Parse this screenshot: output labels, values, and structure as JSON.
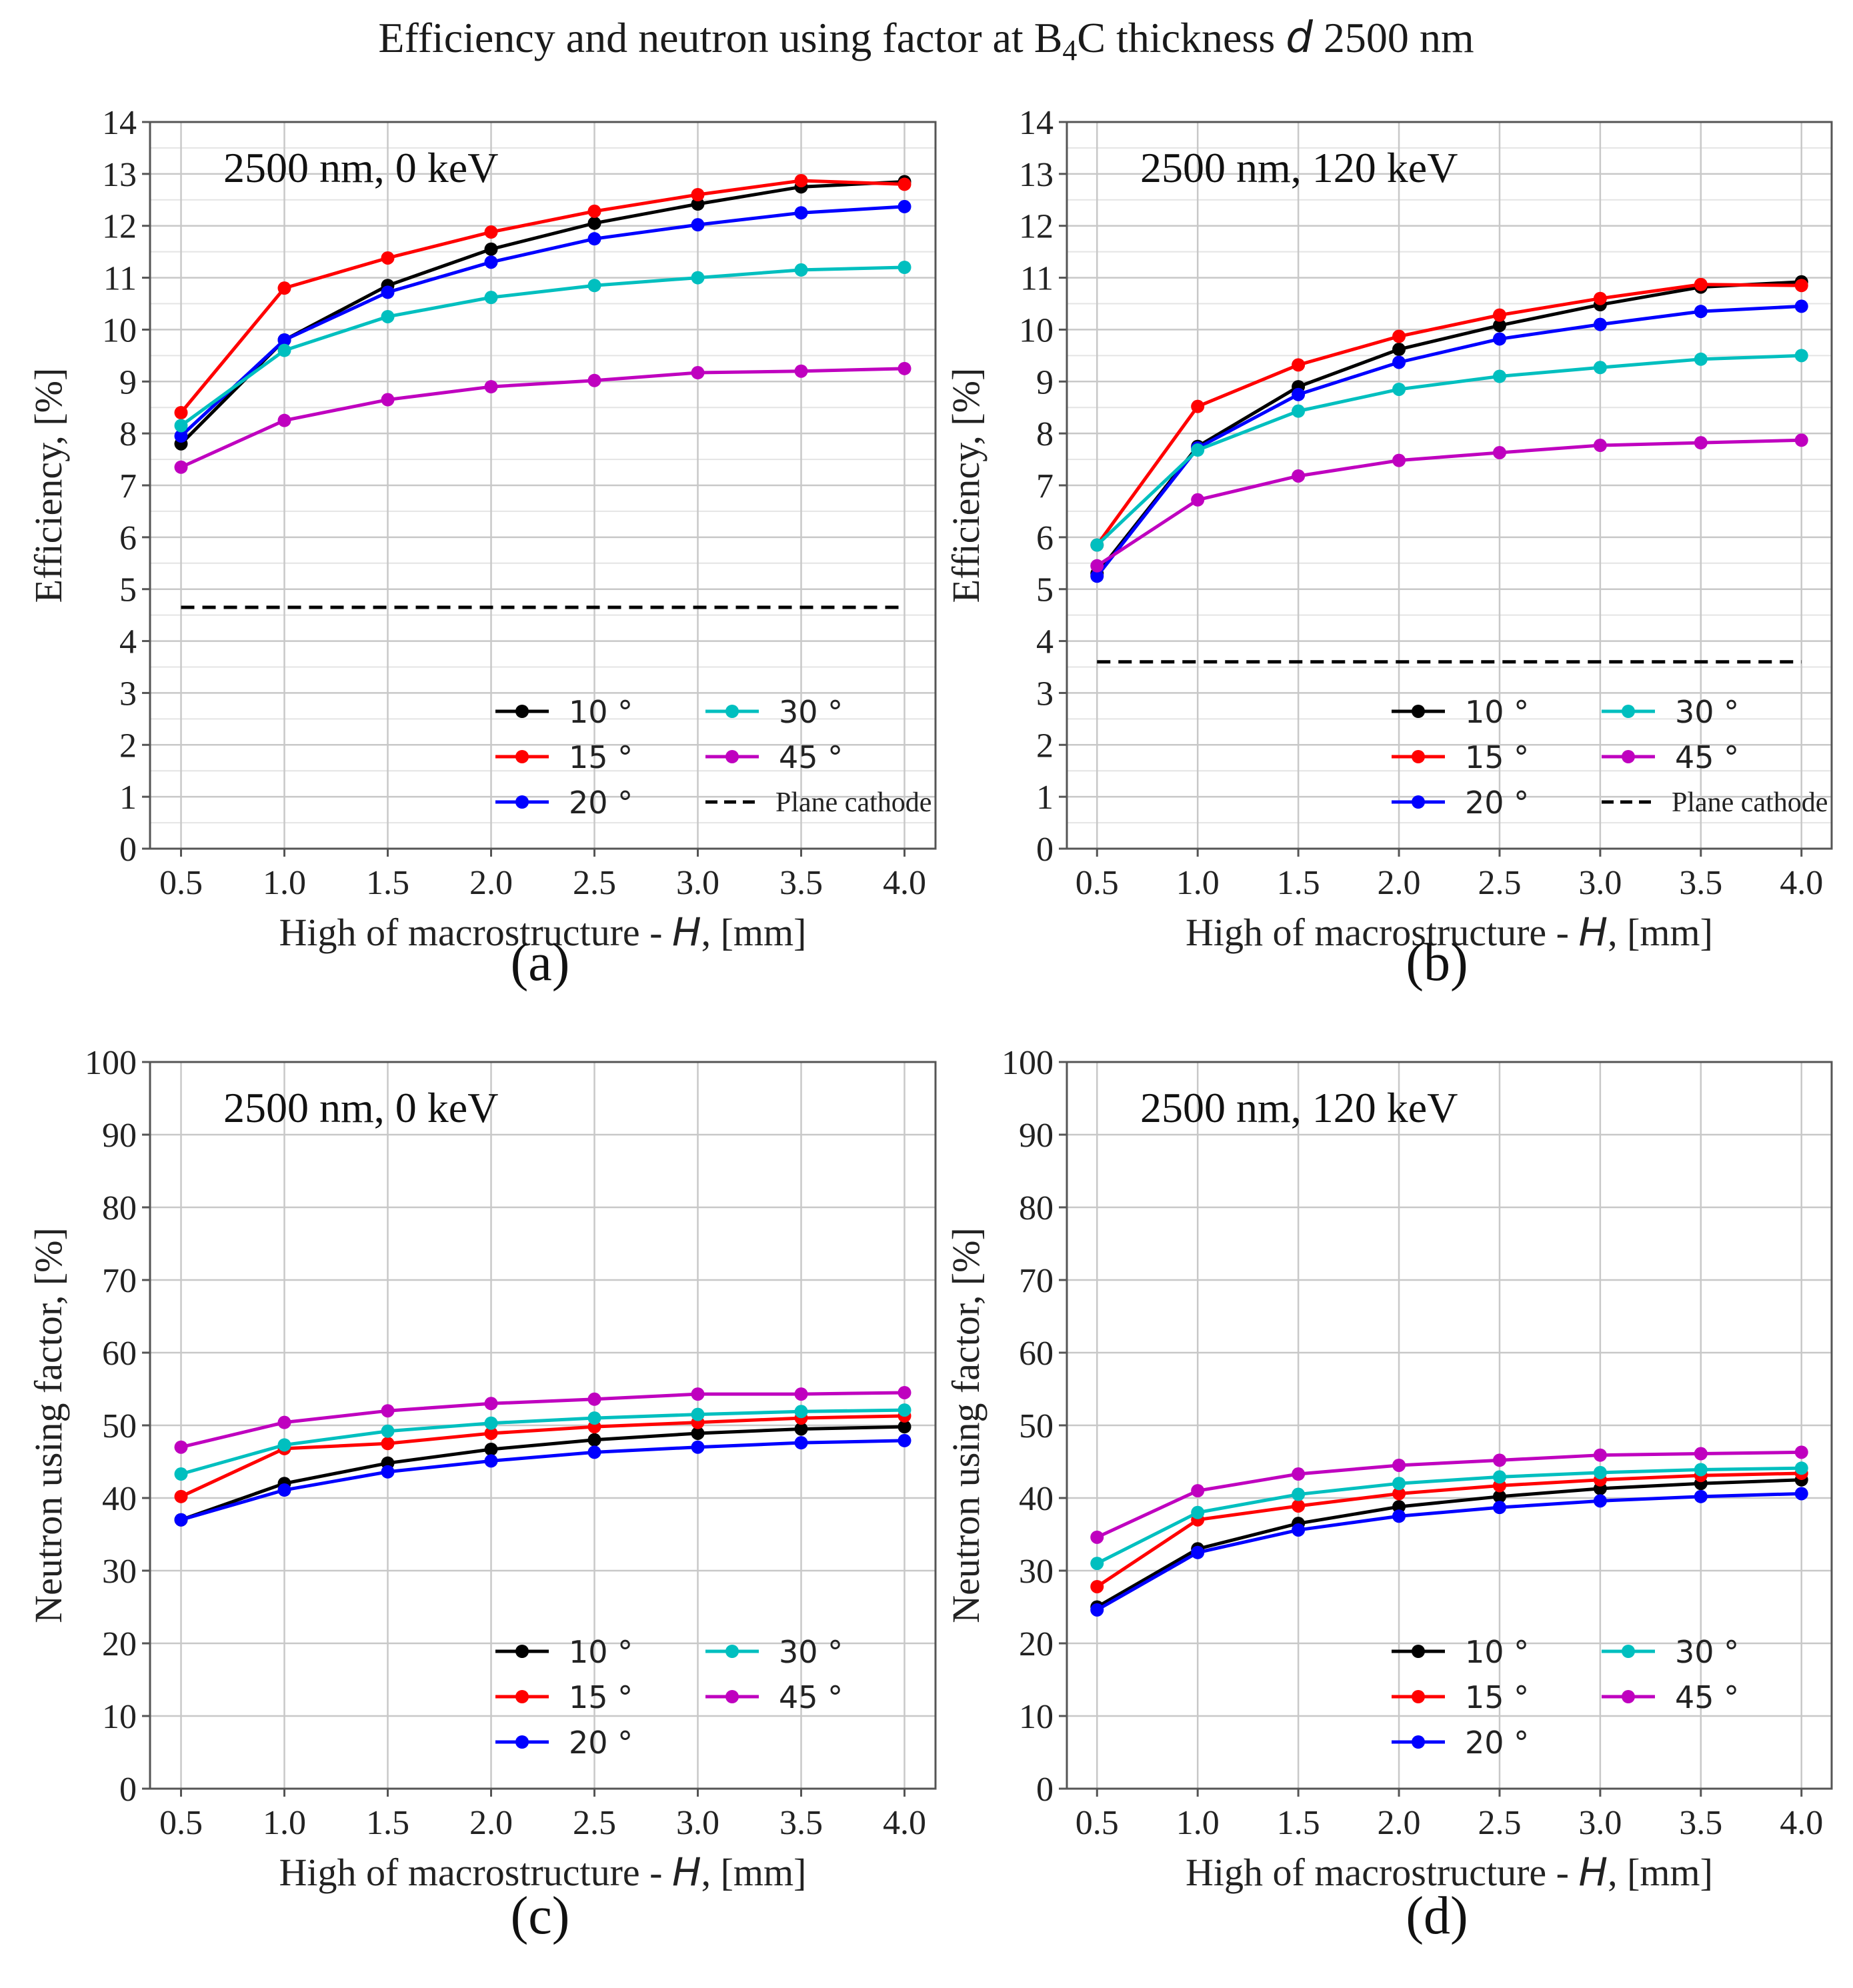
{
  "figure_title": {
    "prefix": "Efficiency and neutron using factor at B",
    "subscript": "4",
    "middle": "C thickness ",
    "var": "d",
    "suffix": " 2500 nm"
  },
  "series_colors": {
    "10°": "#000000",
    "15°": "#ff0000",
    "20°": "#0000ff",
    "30°": "#00bfbf",
    "45°": "#bf00bf",
    "Plane cathode": "#000000"
  },
  "chart_data": [
    {
      "type": "line",
      "panel_label": "(a)",
      "annotation": "2500 nm, 0 keV",
      "xlabel_prefix": "High of macrostructure - ",
      "xlabel_var": "H",
      "xlabel_suffix": ", [mm]",
      "ylabel": "Efficiency, [%]",
      "x": [
        0.5,
        1.0,
        1.5,
        2.0,
        2.5,
        3.0,
        3.5,
        4.0
      ],
      "x_ticks": [
        "0.5",
        "1.0",
        "1.5",
        "2.0",
        "2.5",
        "3.0",
        "3.5",
        "4.0"
      ],
      "xlim": [
        0.35,
        4.15
      ],
      "ylim": [
        0,
        14
      ],
      "y_ticks": [
        "0",
        "1",
        "2",
        "3",
        "4",
        "5",
        "6",
        "7",
        "8",
        "9",
        "10",
        "11",
        "12",
        "13",
        "14"
      ],
      "minor_grid": true,
      "series": [
        {
          "name": "10°",
          "values": [
            7.8,
            9.8,
            10.85,
            11.55,
            12.05,
            12.42,
            12.75,
            12.85
          ]
        },
        {
          "name": "15°",
          "values": [
            8.4,
            10.8,
            11.38,
            11.88,
            12.28,
            12.6,
            12.87,
            12.8
          ]
        },
        {
          "name": "20°",
          "values": [
            7.95,
            9.8,
            10.72,
            11.3,
            11.75,
            12.02,
            12.25,
            12.37
          ]
        },
        {
          "name": "30°",
          "values": [
            8.15,
            9.6,
            10.25,
            10.62,
            10.85,
            11.0,
            11.15,
            11.2
          ]
        },
        {
          "name": "45°",
          "values": [
            7.35,
            8.25,
            8.65,
            8.9,
            9.02,
            9.17,
            9.2,
            9.25
          ]
        }
      ],
      "reference_line": {
        "name": "Plane cathode",
        "value": 4.65
      },
      "legend": {
        "location": "lower-right",
        "entries": [
          "10°",
          "15°",
          "20°",
          "30°",
          "45°",
          "Plane cathode"
        ]
      }
    },
    {
      "type": "line",
      "panel_label": "(b)",
      "annotation": "2500 nm, 120 keV",
      "xlabel_prefix": "High of macrostructure - ",
      "xlabel_var": "H",
      "xlabel_suffix": ", [mm]",
      "ylabel": "Efficiency, [%]",
      "x": [
        0.5,
        1.0,
        1.5,
        2.0,
        2.5,
        3.0,
        3.5,
        4.0
      ],
      "x_ticks": [
        "0.5",
        "1.0",
        "1.5",
        "2.0",
        "2.5",
        "3.0",
        "3.5",
        "4.0"
      ],
      "xlim": [
        0.35,
        4.15
      ],
      "ylim": [
        0,
        14
      ],
      "y_ticks": [
        "0",
        "1",
        "2",
        "3",
        "4",
        "5",
        "6",
        "7",
        "8",
        "9",
        "10",
        "11",
        "12",
        "13",
        "14"
      ],
      "minor_grid": true,
      "series": [
        {
          "name": "10°",
          "values": [
            5.3,
            7.75,
            8.9,
            9.62,
            10.08,
            10.48,
            10.82,
            10.92
          ]
        },
        {
          "name": "15°",
          "values": [
            5.85,
            8.52,
            9.32,
            9.87,
            10.28,
            10.6,
            10.87,
            10.85
          ]
        },
        {
          "name": "20°",
          "values": [
            5.25,
            7.72,
            8.75,
            9.37,
            9.82,
            10.1,
            10.35,
            10.45
          ]
        },
        {
          "name": "30°",
          "values": [
            5.85,
            7.68,
            8.43,
            8.85,
            9.1,
            9.27,
            9.43,
            9.5
          ]
        },
        {
          "name": "45°",
          "values": [
            5.45,
            6.72,
            7.18,
            7.48,
            7.63,
            7.77,
            7.82,
            7.87
          ]
        }
      ],
      "reference_line": {
        "name": "Plane cathode",
        "value": 3.6
      },
      "legend": {
        "location": "lower-right",
        "entries": [
          "10°",
          "15°",
          "20°",
          "30°",
          "45°",
          "Plane cathode"
        ]
      }
    },
    {
      "type": "line",
      "panel_label": "(c)",
      "annotation": "2500 nm, 0 keV",
      "xlabel_prefix": "High of macrostructure - ",
      "xlabel_var": "H",
      "xlabel_suffix": ", [mm]",
      "ylabel": "Neutron using factor, [%]",
      "x": [
        0.5,
        1.0,
        1.5,
        2.0,
        2.5,
        3.0,
        3.5,
        4.0
      ],
      "x_ticks": [
        "0.5",
        "1.0",
        "1.5",
        "2.0",
        "2.5",
        "3.0",
        "3.5",
        "4.0"
      ],
      "xlim": [
        0.35,
        4.15
      ],
      "ylim": [
        0,
        100
      ],
      "y_ticks": [
        "0",
        "10",
        "20",
        "30",
        "40",
        "50",
        "60",
        "70",
        "80",
        "90",
        "100"
      ],
      "minor_grid": false,
      "series": [
        {
          "name": "10°",
          "values": [
            37.0,
            42.0,
            44.8,
            46.7,
            48.0,
            48.9,
            49.5,
            49.8
          ]
        },
        {
          "name": "15°",
          "values": [
            40.2,
            46.8,
            47.5,
            48.9,
            49.8,
            50.4,
            51.0,
            51.3
          ]
        },
        {
          "name": "20°",
          "values": [
            37.0,
            41.1,
            43.6,
            45.1,
            46.3,
            47.0,
            47.6,
            47.9
          ]
        },
        {
          "name": "30°",
          "values": [
            43.3,
            47.3,
            49.2,
            50.3,
            51.0,
            51.5,
            51.9,
            52.1
          ]
        },
        {
          "name": "45°",
          "values": [
            47.0,
            50.4,
            52.0,
            53.0,
            53.6,
            54.3,
            54.3,
            54.5
          ]
        }
      ],
      "legend": {
        "location": "lower-right",
        "entries": [
          "10°",
          "15°",
          "20°",
          "30°",
          "45°"
        ]
      }
    },
    {
      "type": "line",
      "panel_label": "(d)",
      "annotation": "2500 nm, 120 keV",
      "xlabel_prefix": "High of macrostructure - ",
      "xlabel_var": "H",
      "xlabel_suffix": ", [mm]",
      "ylabel": "Neutron using factor, [%]",
      "x": [
        0.5,
        1.0,
        1.5,
        2.0,
        2.5,
        3.0,
        3.5,
        4.0
      ],
      "x_ticks": [
        "0.5",
        "1.0",
        "1.5",
        "2.0",
        "2.5",
        "3.0",
        "3.5",
        "4.0"
      ],
      "xlim": [
        0.35,
        4.15
      ],
      "ylim": [
        0,
        100
      ],
      "y_ticks": [
        "0",
        "10",
        "20",
        "30",
        "40",
        "50",
        "60",
        "70",
        "80",
        "90",
        "100"
      ],
      "minor_grid": false,
      "series": [
        {
          "name": "10°",
          "values": [
            25.0,
            33.0,
            36.5,
            38.8,
            40.2,
            41.3,
            42.0,
            42.5
          ]
        },
        {
          "name": "15°",
          "values": [
            27.8,
            37.0,
            38.9,
            40.6,
            41.7,
            42.5,
            43.1,
            43.4
          ]
        },
        {
          "name": "20°",
          "values": [
            24.6,
            32.5,
            35.6,
            37.5,
            38.7,
            39.6,
            40.2,
            40.6
          ]
        },
        {
          "name": "30°",
          "values": [
            31.0,
            38.0,
            40.5,
            42.0,
            42.9,
            43.5,
            43.9,
            44.1
          ]
        },
        {
          "name": "45°",
          "values": [
            34.6,
            41.0,
            43.3,
            44.5,
            45.2,
            45.9,
            46.1,
            46.3
          ]
        }
      ],
      "legend": {
        "location": "lower-right",
        "entries": [
          "10°",
          "15°",
          "20°",
          "30°",
          "45°"
        ]
      }
    }
  ]
}
